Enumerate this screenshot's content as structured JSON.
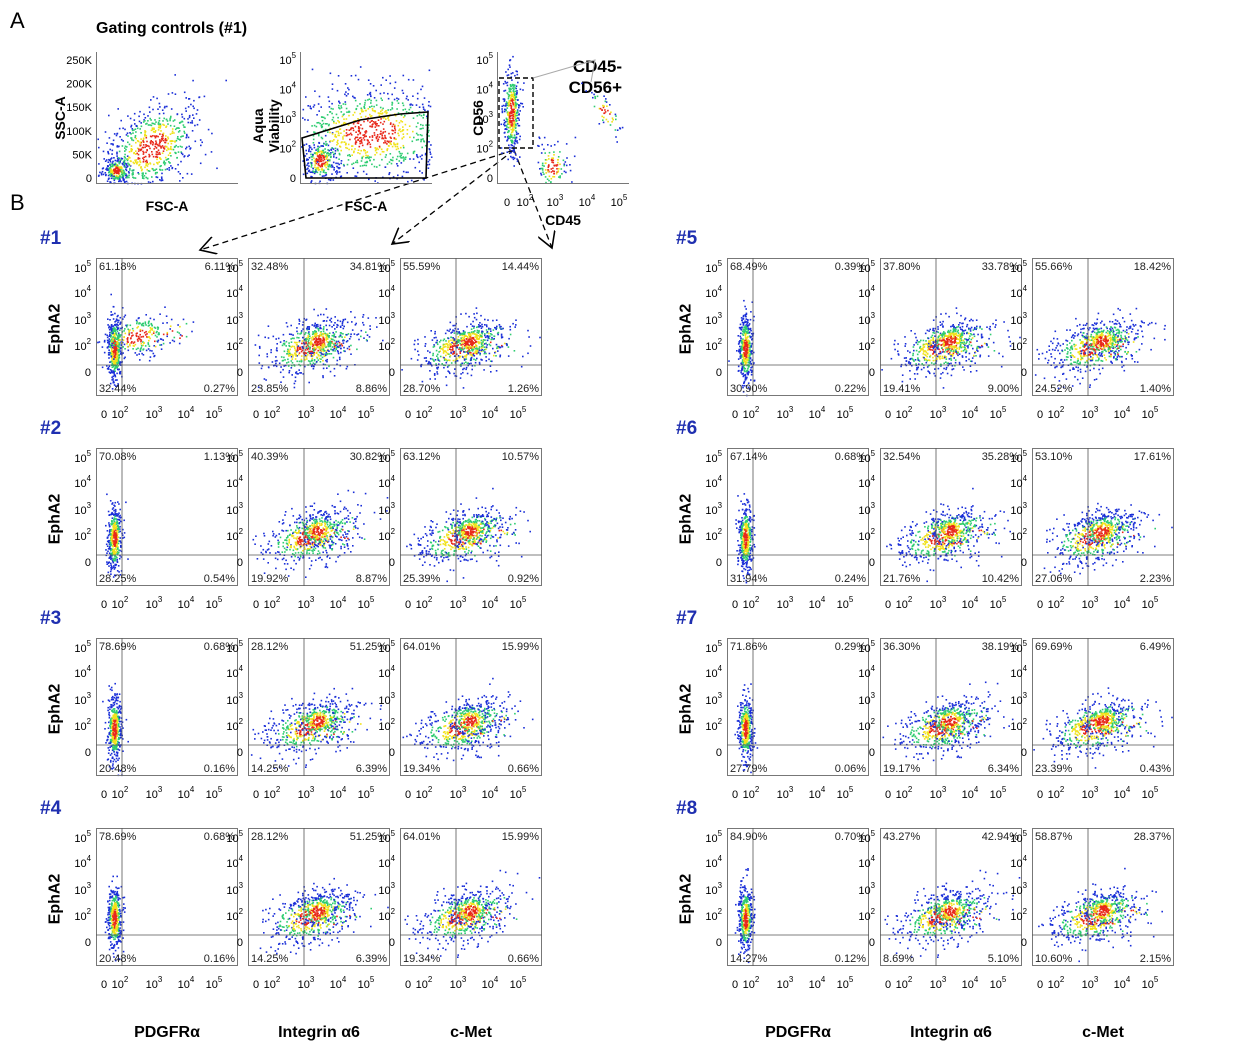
{
  "panel_a_letter": "A",
  "panel_b_letter": "B",
  "gating_title": "Gating controls  (#1)",
  "gate_label_line1": "CD45-",
  "gate_label_line2": "CD56+",
  "y_axis_label": "EphA2",
  "x_axis_labels": [
    "PDGFRα",
    "Integrin α6",
    "c-Met"
  ],
  "colors": {
    "sample_label": "#1f2fb0",
    "density_low": "#1a2fd8",
    "density_mid": "#2ecc71",
    "density_high": "#f1e21a",
    "density_peak": "#e8281a"
  },
  "chart_data": [
    {
      "type": "scatter",
      "title": "Gating controls  (#1)",
      "xlabel": "FSC-A",
      "ylabel": "SSC-A",
      "ytick_labels": [
        "250K",
        "200K",
        "150K",
        "100K",
        "50K",
        "0"
      ]
    },
    {
      "type": "scatter",
      "xlabel": "FSC-A",
      "ylabel": "Aqua Viability",
      "yscale": "log",
      "ytick_labels": [
        "10^5",
        "10^4",
        "10^3",
        "10^2",
        "0"
      ]
    },
    {
      "type": "scatter",
      "xlabel": "CD45",
      "ylabel": "CD56",
      "xscale": "log",
      "yscale": "log",
      "xtick_labels": [
        "0",
        "10^2",
        "10^3",
        "10^4",
        "10^5"
      ],
      "ytick_labels": [
        "10^5",
        "10^4",
        "10^3",
        "10^2",
        "0"
      ],
      "gate": "CD45- CD56+"
    },
    {
      "type": "scatter_quadrant_grid",
      "ylabel": "EphA2",
      "markers": [
        "PDGFRα",
        "Integrin α6",
        "c-Met"
      ],
      "axis_ticks": [
        "0",
        "10^2",
        "10^3",
        "10^4",
        "10^5"
      ],
      "quadrant_order": [
        "upper-left",
        "upper-right",
        "lower-left",
        "lower-right"
      ],
      "samples": [
        {
          "name": "#1",
          "panels": [
            {
              "marker": "PDGFRα",
              "quadrants": [
                "61.18%",
                "6.11%",
                "32.44%",
                "0.27%"
              ]
            },
            {
              "marker": "Integrin α6",
              "quadrants": [
                "32.48%",
                "34.81%",
                "23.85%",
                "8.86%"
              ]
            },
            {
              "marker": "c-Met",
              "quadrants": [
                "55.59%",
                "14.44%",
                "28.70%",
                "1.26%"
              ]
            }
          ]
        },
        {
          "name": "#2",
          "panels": [
            {
              "marker": "PDGFRα",
              "quadrants": [
                "70.08%",
                "1.13%",
                "28.25%",
                "0.54%"
              ]
            },
            {
              "marker": "Integrin α6",
              "quadrants": [
                "40.39%",
                "30.82%",
                "19.92%",
                "8.87%"
              ]
            },
            {
              "marker": "c-Met",
              "quadrants": [
                "63.12%",
                "10.57%",
                "25.39%",
                "0.92%"
              ]
            }
          ]
        },
        {
          "name": "#3",
          "panels": [
            {
              "marker": "PDGFRα",
              "quadrants": [
                "78.69%",
                "0.68%",
                "20.48%",
                "0.16%"
              ]
            },
            {
              "marker": "Integrin α6",
              "quadrants": [
                "28.12%",
                "51.25%",
                "14.25%",
                "6.39%"
              ]
            },
            {
              "marker": "c-Met",
              "quadrants": [
                "64.01%",
                "15.99%",
                "19.34%",
                "0.66%"
              ]
            }
          ]
        },
        {
          "name": "#4",
          "panels": [
            {
              "marker": "PDGFRα",
              "quadrants": [
                "78.69%",
                "0.68%",
                "20.48%",
                "0.16%"
              ]
            },
            {
              "marker": "Integrin α6",
              "quadrants": [
                "28.12%",
                "51.25%",
                "14.25%",
                "6.39%"
              ]
            },
            {
              "marker": "c-Met",
              "quadrants": [
                "64.01%",
                "15.99%",
                "19.34%",
                "0.66%"
              ]
            }
          ]
        },
        {
          "name": "#5",
          "panels": [
            {
              "marker": "PDGFRα",
              "quadrants": [
                "68.49%",
                "0.39%",
                "30.90%",
                "0.22%"
              ]
            },
            {
              "marker": "Integrin α6",
              "quadrants": [
                "37.80%",
                "33.78%",
                "19.41%",
                "9.00%"
              ]
            },
            {
              "marker": "c-Met",
              "quadrants": [
                "55.66%",
                "18.42%",
                "24.52%",
                "1.40%"
              ]
            }
          ]
        },
        {
          "name": "#6",
          "panels": [
            {
              "marker": "PDGFRα",
              "quadrants": [
                "67.14%",
                "0.68%",
                "31.94%",
                "0.24%"
              ]
            },
            {
              "marker": "Integrin α6",
              "quadrants": [
                "32.54%",
                "35.28%",
                "21.76%",
                "10.42%"
              ]
            },
            {
              "marker": "c-Met",
              "quadrants": [
                "53.10%",
                "17.61%",
                "27.06%",
                "2.23%"
              ]
            }
          ]
        },
        {
          "name": "#7",
          "panels": [
            {
              "marker": "PDGFRα",
              "quadrants": [
                "71.86%",
                "0.29%",
                "27.79%",
                "0.06%"
              ]
            },
            {
              "marker": "Integrin α6",
              "quadrants": [
                "36.30%",
                "38.19%",
                "19.17%",
                "6.34%"
              ]
            },
            {
              "marker": "c-Met",
              "quadrants": [
                "69.69%",
                "6.49%",
                "23.39%",
                "0.43%"
              ]
            }
          ]
        },
        {
          "name": "#8",
          "panels": [
            {
              "marker": "PDGFRα",
              "quadrants": [
                "84.90%",
                "0.70%",
                "14.27%",
                "0.12%"
              ]
            },
            {
              "marker": "Integrin α6",
              "quadrants": [
                "43.27%",
                "42.94%",
                "8.69%",
                "5.10%"
              ]
            },
            {
              "marker": "c-Met",
              "quadrants": [
                "58.87%",
                "28.37%",
                "10.60%",
                "2.15%"
              ]
            }
          ]
        }
      ]
    }
  ]
}
